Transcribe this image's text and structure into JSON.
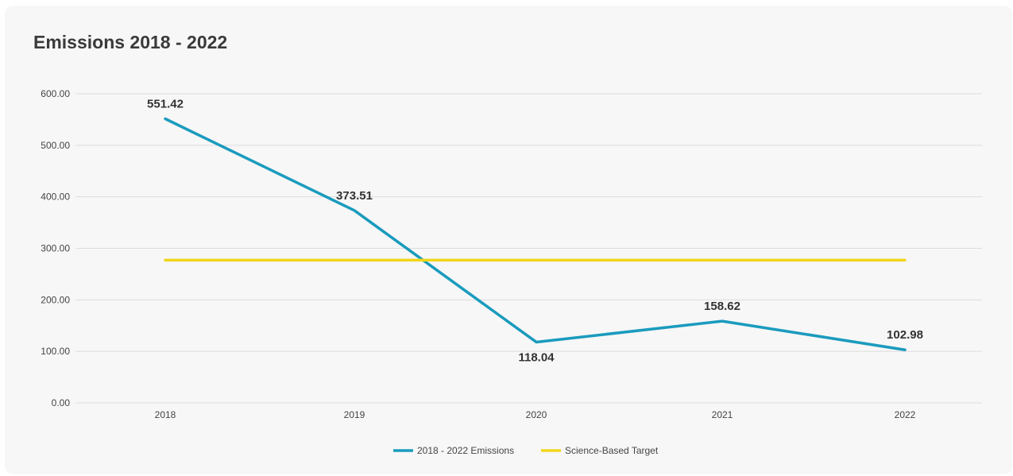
{
  "colors": {
    "background": "#f7f7f7",
    "grid": "#dcdcdc",
    "emissions": "#1a9bbd",
    "target": "#f2d61a"
  },
  "chart_data": {
    "type": "line",
    "title": "Emissions 2018 - 2022",
    "xlabel": "",
    "ylabel": "",
    "categories": [
      "2018",
      "2019",
      "2020",
      "2021",
      "2022"
    ],
    "ylim": [
      0,
      600
    ],
    "y_ticks": [
      "0.00",
      "100.00",
      "200.00",
      "300.00",
      "400.00",
      "500.00",
      "600.00"
    ],
    "grid": true,
    "legend_position": "bottom",
    "series": [
      {
        "name": "2018 - 2022 Emissions",
        "values": [
          551.42,
          373.51,
          118.04,
          158.62,
          102.98
        ],
        "labels": [
          "551.42",
          "373.51",
          "118.04",
          "158.62",
          "102.98"
        ],
        "color": "#1a9bbd"
      },
      {
        "name": "Science-Based Target",
        "values": [
          277,
          277,
          277,
          277,
          277
        ],
        "color": "#f2d61a"
      }
    ]
  }
}
